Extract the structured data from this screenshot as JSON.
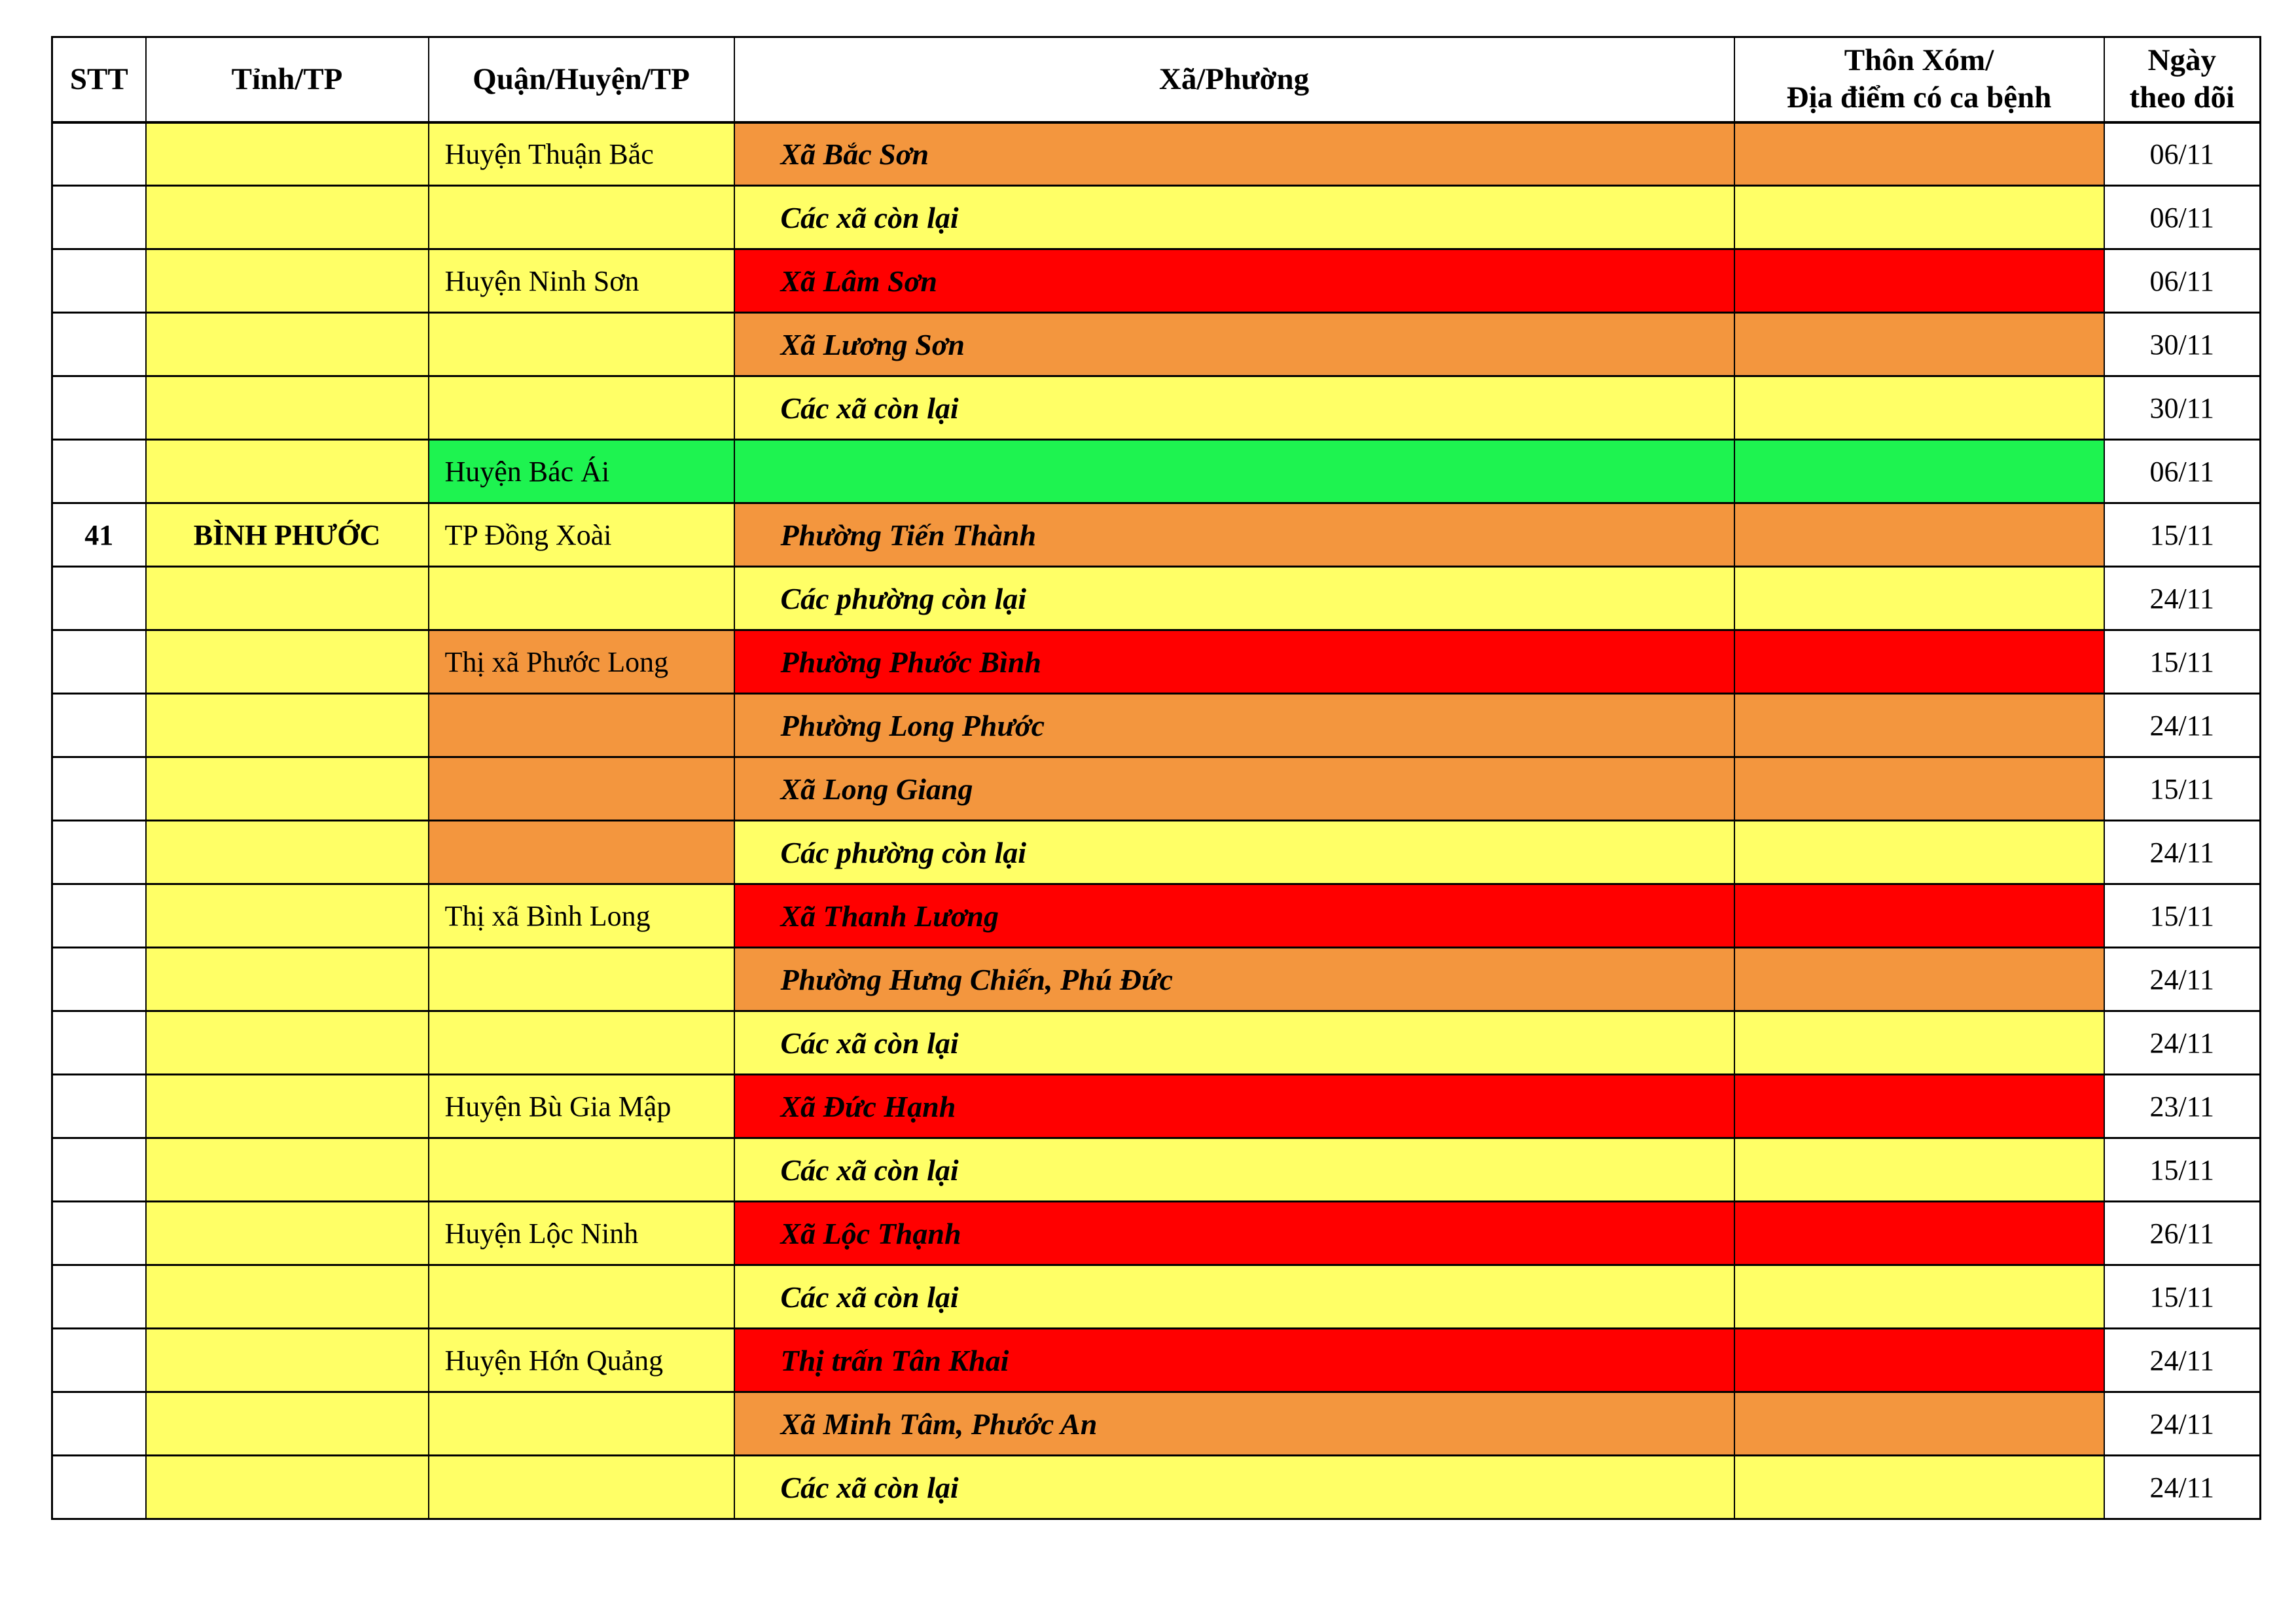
{
  "colors": {
    "yellow": "#FFFF66",
    "orange": "#F3963E",
    "red": "#FF0000",
    "green": "#1EF350",
    "white": "#FFFFFF",
    "border": "#000000"
  },
  "table": {
    "header": {
      "stt": "STT",
      "tinh": "Tỉnh/TP",
      "quan": "Quận/Huyện/TP",
      "xa": "Xã/Phường",
      "thon_line1": "Thôn Xóm/",
      "thon_line2": "Địa điểm có ca bệnh",
      "ngay_line1": "Ngày",
      "ngay_line2": "theo dõi"
    },
    "rows": [
      {
        "stt": "",
        "tinh": "",
        "quan": "Huyện Thuận Bắc",
        "quan_bg": "yellow",
        "xa": "Xã Bắc Sơn",
        "xa_bg": "orange",
        "thon": "",
        "ngay": "06/11"
      },
      {
        "stt": "",
        "tinh": "",
        "quan": "",
        "quan_bg": "yellow",
        "xa": "Các xã còn lại",
        "xa_bg": "yellow",
        "thon": "",
        "ngay": "06/11"
      },
      {
        "stt": "",
        "tinh": "",
        "quan": "Huyện Ninh Sơn",
        "quan_bg": "yellow",
        "xa": "Xã Lâm Sơn",
        "xa_bg": "red",
        "thon": "",
        "ngay": "06/11"
      },
      {
        "stt": "",
        "tinh": "",
        "quan": "",
        "quan_bg": "yellow",
        "xa": "Xã Lương Sơn",
        "xa_bg": "orange",
        "thon": "",
        "ngay": "30/11"
      },
      {
        "stt": "",
        "tinh": "",
        "quan": "",
        "quan_bg": "yellow",
        "xa": "Các xã còn lại",
        "xa_bg": "yellow",
        "thon": "",
        "ngay": "30/11"
      },
      {
        "stt": "",
        "tinh": "",
        "quan": "Huyện Bác Ái",
        "quan_bg": "green",
        "xa": "",
        "xa_bg": "green",
        "thon": "",
        "ngay": "06/11"
      },
      {
        "stt": "41",
        "tinh": "BÌNH PHƯỚC",
        "quan": "TP Đồng Xoài",
        "quan_bg": "yellow",
        "xa": "Phường Tiến Thành",
        "xa_bg": "orange",
        "thon": "",
        "ngay": "15/11"
      },
      {
        "stt": "",
        "tinh": "",
        "quan": "",
        "quan_bg": "yellow",
        "xa": "Các phường còn lại",
        "xa_bg": "yellow",
        "thon": "",
        "ngay": "24/11"
      },
      {
        "stt": "",
        "tinh": "",
        "quan": "Thị xã Phước Long",
        "quan_bg": "orange",
        "xa": "Phường Phước Bình",
        "xa_bg": "red",
        "thon": "",
        "ngay": "15/11"
      },
      {
        "stt": "",
        "tinh": "",
        "quan": "",
        "quan_bg": "orange",
        "xa": "Phường Long Phước",
        "xa_bg": "orange",
        "thon": "",
        "ngay": "24/11"
      },
      {
        "stt": "",
        "tinh": "",
        "quan": "",
        "quan_bg": "orange",
        "xa": "Xã Long Giang",
        "xa_bg": "orange",
        "thon": "",
        "ngay": "15/11"
      },
      {
        "stt": "",
        "tinh": "",
        "quan": "",
        "quan_bg": "orange",
        "xa": "Các phường còn lại",
        "xa_bg": "yellow",
        "thon": "",
        "ngay": "24/11"
      },
      {
        "stt": "",
        "tinh": "",
        "quan": "Thị xã Bình Long",
        "quan_bg": "yellow",
        "xa": "Xã Thanh Lương",
        "xa_bg": "red",
        "thon": "",
        "ngay": "15/11"
      },
      {
        "stt": "",
        "tinh": "",
        "quan": "",
        "quan_bg": "yellow",
        "xa": "Phường Hưng Chiến, Phú Đức",
        "xa_bg": "orange",
        "thon": "",
        "ngay": "24/11"
      },
      {
        "stt": "",
        "tinh": "",
        "quan": "",
        "quan_bg": "yellow",
        "xa": "Các xã còn lại",
        "xa_bg": "yellow",
        "thon": "",
        "ngay": "24/11"
      },
      {
        "stt": "",
        "tinh": "",
        "quan": "Huyện Bù Gia Mập",
        "quan_bg": "yellow",
        "xa": "Xã Đức Hạnh",
        "xa_bg": "red",
        "thon": "",
        "ngay": "23/11"
      },
      {
        "stt": "",
        "tinh": "",
        "quan": "",
        "quan_bg": "yellow",
        "xa": "Các xã còn lại",
        "xa_bg": "yellow",
        "thon": "",
        "ngay": "15/11"
      },
      {
        "stt": "",
        "tinh": "",
        "quan": "Huyện Lộc Ninh",
        "quan_bg": "yellow",
        "xa": "Xã Lộc Thạnh",
        "xa_bg": "red",
        "thon": "",
        "ngay": "26/11"
      },
      {
        "stt": "",
        "tinh": "",
        "quan": "",
        "quan_bg": "yellow",
        "xa": "Các xã còn lại",
        "xa_bg": "yellow",
        "thon": "",
        "ngay": "15/11"
      },
      {
        "stt": "",
        "tinh": "",
        "quan": "Huyện Hớn Quảng",
        "quan_bg": "yellow",
        "xa": "Thị trấn Tân Khai",
        "xa_bg": "red",
        "thon": "",
        "ngay": "24/11"
      },
      {
        "stt": "",
        "tinh": "",
        "quan": "",
        "quan_bg": "yellow",
        "xa": "Xã Minh Tâm, Phước An",
        "xa_bg": "orange",
        "thon": "",
        "ngay": "24/11"
      },
      {
        "stt": "",
        "tinh": "",
        "quan": "",
        "quan_bg": "yellow",
        "xa": "Các xã còn lại",
        "xa_bg": "yellow",
        "thon": "",
        "ngay": "24/11"
      }
    ]
  }
}
